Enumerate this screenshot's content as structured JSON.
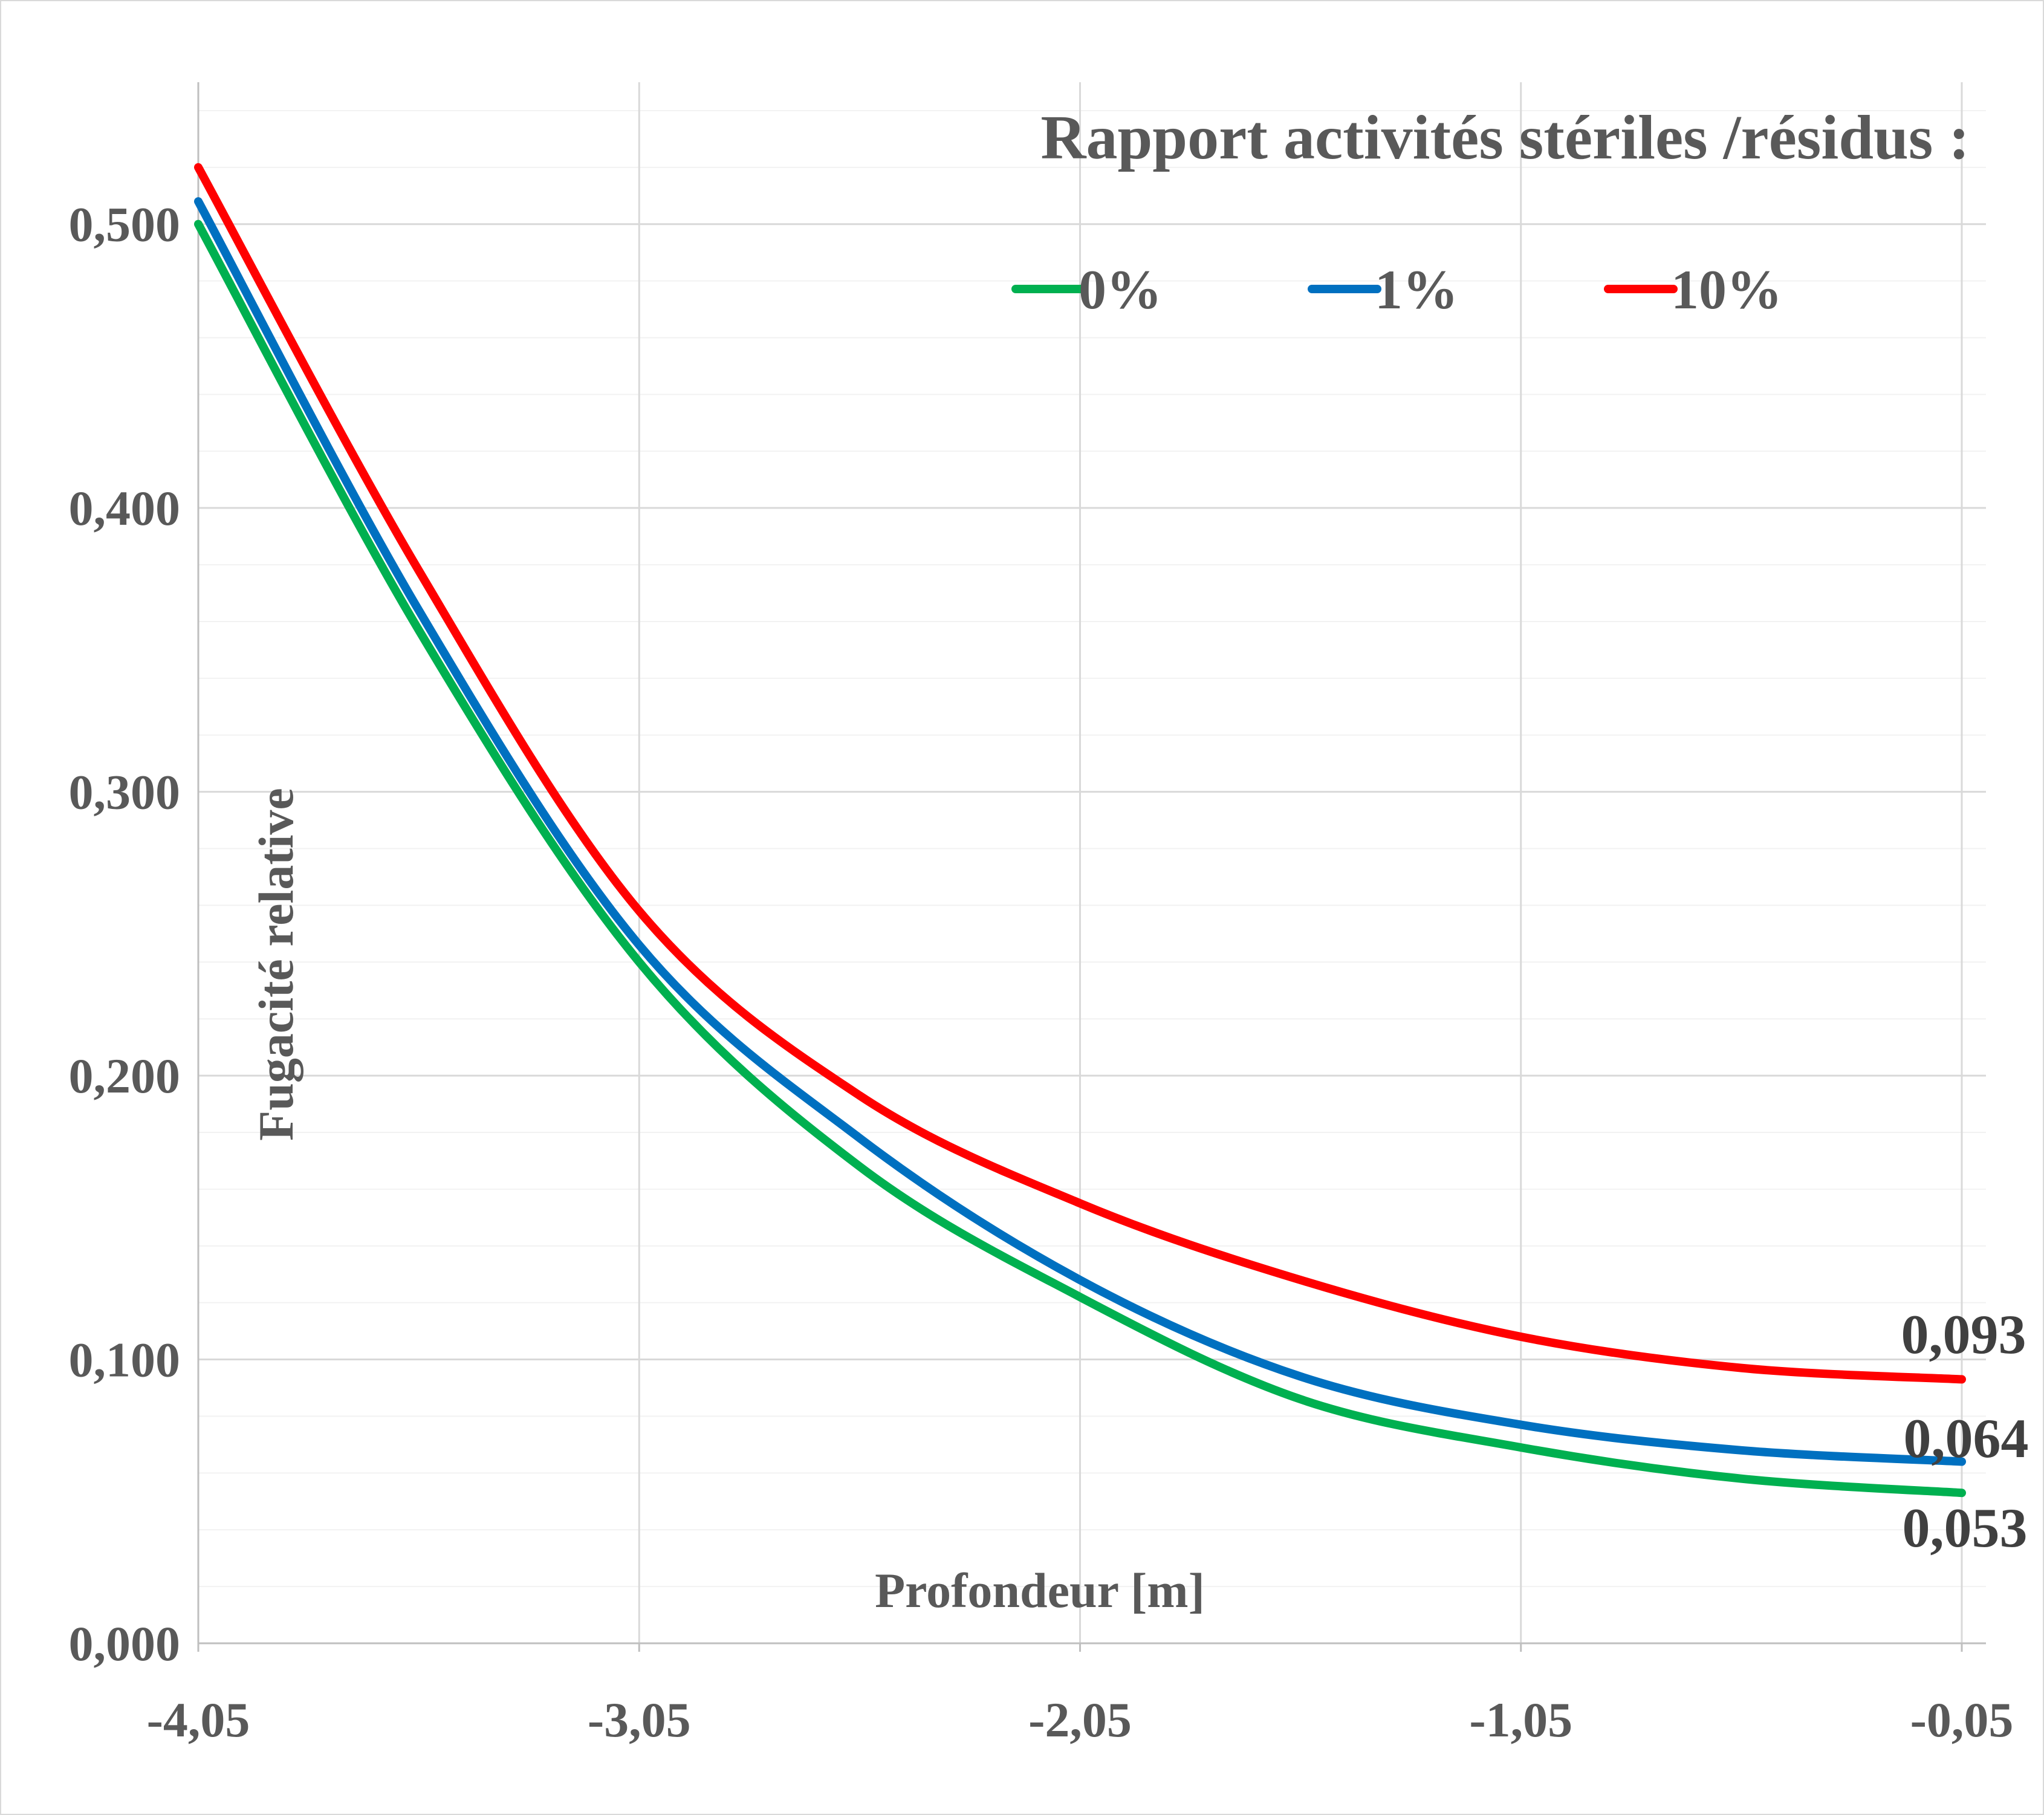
{
  "chart_data": {
    "type": "line",
    "title": "Rapport activités stériles /résidus :",
    "xlabel": "Profondeur [m]",
    "ylabel": "Fugacité relative",
    "xlim": [
      -4.05,
      -0.05
    ],
    "ylim": [
      0,
      0.55
    ],
    "x_ticks": [
      "-4,05",
      "-3,05",
      "-2,05",
      "-1,05",
      "-0,05"
    ],
    "y_ticks": [
      "0,000",
      "0,100",
      "0,200",
      "0,300",
      "0,400",
      "0,500"
    ],
    "grid": true,
    "legend_position": "top",
    "x": [
      -4.05,
      -3.55,
      -3.05,
      -2.55,
      -2.05,
      -1.55,
      -1.05,
      -0.55,
      -0.05
    ],
    "series": [
      {
        "name": "0%",
        "color": "#00b050",
        "values": [
          0.5,
          0.357,
          0.24,
          0.168,
          0.122,
          0.086,
          0.069,
          0.058,
          0.053
        ],
        "end_label": "0,053"
      },
      {
        "name": "1%",
        "color": "#0070c0",
        "values": [
          0.508,
          0.364,
          0.246,
          0.178,
          0.128,
          0.094,
          0.077,
          0.068,
          0.064
        ],
        "end_label": "0,064"
      },
      {
        "name": "10%",
        "color": "#ff0000",
        "values": [
          0.52,
          0.378,
          0.258,
          0.193,
          0.155,
          0.128,
          0.108,
          0.097,
          0.093
        ],
        "end_label": "0,093"
      }
    ]
  }
}
